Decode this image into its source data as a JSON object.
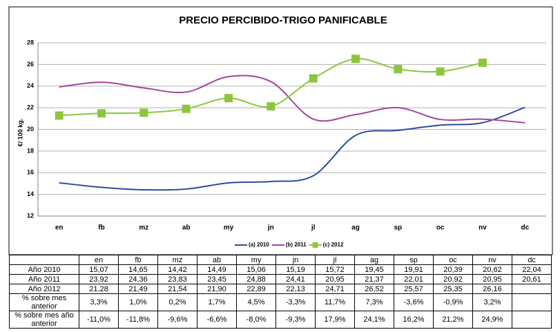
{
  "chart_data": {
    "type": "line",
    "title": "PRECIO PERCIBIDO-TRIGO PANIFICABLE",
    "y_label": "€/ 100 kg.",
    "categories": [
      "en",
      "fb",
      "mz",
      "ab",
      "my",
      "jn",
      "jl",
      "ag",
      "sp",
      "oc",
      "nv",
      "dc"
    ],
    "ylim": [
      12,
      28
    ],
    "yticks": [
      12,
      14,
      16,
      18,
      20,
      22,
      24,
      26,
      28
    ],
    "grid": true,
    "series": [
      {
        "name": "(a) 2010",
        "color": "#2b4c9b",
        "marker": false,
        "values": [
          15.07,
          14.65,
          14.42,
          14.49,
          15.06,
          15.19,
          15.72,
          19.45,
          19.91,
          20.39,
          20.62,
          22.04
        ],
        "value_labels": [
          "15,07",
          "14,65",
          "14,42",
          "14,49",
          "15,06",
          "15,19",
          "15,72",
          "19,45",
          "19,91",
          "20,39",
          "20,62",
          "22,04"
        ]
      },
      {
        "name": "(b) 2011",
        "color": "#a3449c",
        "marker": false,
        "values": [
          23.92,
          24.36,
          23.83,
          23.45,
          24.88,
          24.41,
          20.95,
          21.37,
          22.01,
          20.92,
          20.95,
          20.61
        ],
        "value_labels": [
          "23,92",
          "24,36",
          "23,83",
          "23,45",
          "24,88",
          "24,41",
          "20,95",
          "21,37",
          "22,01",
          "20,92",
          "20,95",
          "20,61"
        ]
      },
      {
        "name": "(c) 2012",
        "color": "#8cc63f",
        "marker": true,
        "values": [
          21.28,
          21.49,
          21.54,
          21.9,
          22.89,
          22.13,
          24.71,
          26.52,
          25.57,
          25.35,
          26.16,
          null
        ],
        "value_labels": [
          "21,28",
          "21,49",
          "21,54",
          "21,90",
          "22,89",
          "22,13",
          "24,71",
          "26,52",
          "25,57",
          "25,35",
          "26,16",
          null
        ]
      }
    ]
  },
  "table": {
    "row_labels": [
      "Año 2010",
      "Año 2011",
      "Año 2012"
    ],
    "extra_rows": [
      {
        "label": "% sobre mes anterior",
        "cells": [
          "3,3%",
          "1,0%",
          "0,2%",
          "1,7%",
          "4,5%",
          "-3,3%",
          "11,7%",
          "7,3%",
          "-3,6%",
          "-0,9%",
          "3,2%",
          null
        ]
      },
      {
        "label": "% sobre mes año anterior",
        "cells": [
          "-11,0%",
          "-11,8%",
          "-9,6%",
          "-6,6%",
          "-8,0%",
          "-9,3%",
          "17,9%",
          "24,1%",
          "16,2%",
          "21,2%",
          "24,9%",
          null
        ]
      }
    ]
  }
}
